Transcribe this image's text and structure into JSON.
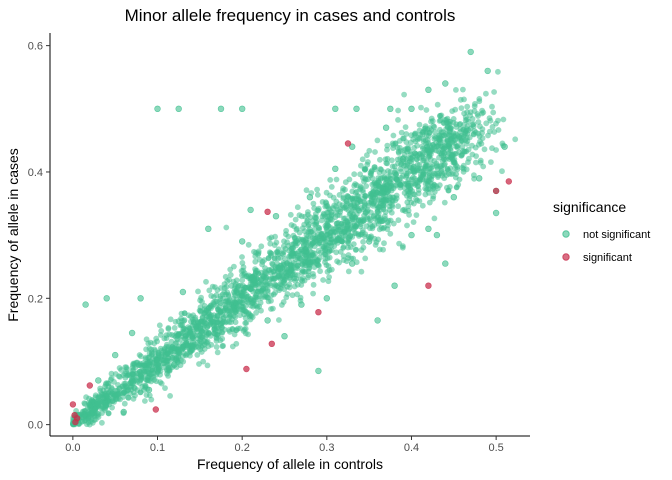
{
  "chart_data": {
    "type": "scatter",
    "title": "Minor allele frequency in cases and controls",
    "xlabel": "Frequency of allele in controls",
    "ylabel": "Frequency of allele in cases",
    "xlim": [
      -0.027,
      0.54
    ],
    "ylim": [
      -0.018,
      0.62
    ],
    "x_ticks": [
      0.0,
      0.1,
      0.2,
      0.3,
      0.4,
      0.5
    ],
    "x_tick_labels": [
      "0.0",
      "0.1",
      "0.2",
      "0.3",
      "0.4",
      "0.5"
    ],
    "y_ticks": [
      0.0,
      0.2,
      0.4,
      0.6
    ],
    "y_tick_labels": [
      "0.0",
      "0.2",
      "0.4",
      "0.6"
    ],
    "grid": false,
    "legend": {
      "title": "significance",
      "position": "right",
      "entries": [
        {
          "label": "not significant",
          "color": "#3fbf8f"
        },
        {
          "label": "significant",
          "color": "#c9304e"
        }
      ]
    },
    "dense_band": {
      "series": "not significant",
      "description_points": [
        [
          0.0,
          0.0
        ],
        [
          0.05,
          0.05
        ],
        [
          0.1,
          0.1
        ],
        [
          0.2,
          0.2
        ],
        [
          0.3,
          0.3
        ],
        [
          0.4,
          0.4
        ],
        [
          0.47,
          0.47
        ]
      ]
    },
    "series": [
      {
        "name": "not significant",
        "color": "#3fbf8f",
        "points": [
          [
            0.1,
            0.5
          ],
          [
            0.125,
            0.5
          ],
          [
            0.175,
            0.5
          ],
          [
            0.2,
            0.5
          ],
          [
            0.31,
            0.5
          ],
          [
            0.335,
            0.5
          ],
          [
            0.375,
            0.5
          ],
          [
            0.4,
            0.5
          ],
          [
            0.47,
            0.59
          ],
          [
            0.49,
            0.56
          ],
          [
            0.51,
            0.44
          ],
          [
            0.5,
            0.37
          ],
          [
            0.5,
            0.335
          ],
          [
            0.44,
            0.255
          ],
          [
            0.36,
            0.165
          ],
          [
            0.29,
            0.085
          ],
          [
            0.015,
            0.19
          ],
          [
            0.04,
            0.2
          ],
          [
            0.08,
            0.2
          ],
          [
            0.21,
            0.34
          ],
          [
            0.16,
            0.31
          ],
          [
            0.35,
            0.29
          ],
          [
            0.4,
            0.3
          ],
          [
            0.23,
            0.165
          ],
          [
            0.25,
            0.14
          ],
          [
            0.33,
            0.255
          ],
          [
            0.42,
            0.31
          ],
          [
            0.45,
            0.36
          ],
          [
            0.48,
            0.39
          ],
          [
            0.43,
            0.3
          ],
          [
            0.38,
            0.22
          ],
          [
            0.21,
            0.215
          ],
          [
            0.27,
            0.19
          ],
          [
            0.12,
            0.095
          ],
          [
            0.09,
            0.055
          ],
          [
            0.06,
            0.02
          ],
          [
            0.03,
            0.07
          ],
          [
            0.05,
            0.11
          ],
          [
            0.07,
            0.145
          ],
          [
            0.13,
            0.21
          ],
          [
            0.2,
            0.29
          ],
          [
            0.24,
            0.33
          ],
          [
            0.31,
            0.405
          ],
          [
            0.37,
            0.47
          ],
          [
            0.42,
            0.53
          ],
          [
            0.44,
            0.54
          ],
          [
            0.39,
            0.42
          ],
          [
            0.33,
            0.44
          ],
          [
            0.28,
            0.36
          ],
          [
            0.3,
            0.2
          ]
        ]
      },
      {
        "name": "significant",
        "color": "#c9304e",
        "points": [
          [
            0.325,
            0.445
          ],
          [
            0.23,
            0.337
          ],
          [
            0.42,
            0.22
          ],
          [
            0.29,
            0.178
          ],
          [
            0.235,
            0.128
          ],
          [
            0.205,
            0.088
          ],
          [
            0.098,
            0.024
          ],
          [
            0.02,
            0.062
          ],
          [
            0.0,
            0.032
          ],
          [
            0.002,
            0.015
          ],
          [
            0.005,
            0.01
          ],
          [
            0.003,
            0.004
          ],
          [
            0.515,
            0.385
          ],
          [
            0.5,
            0.37
          ]
        ]
      }
    ]
  }
}
